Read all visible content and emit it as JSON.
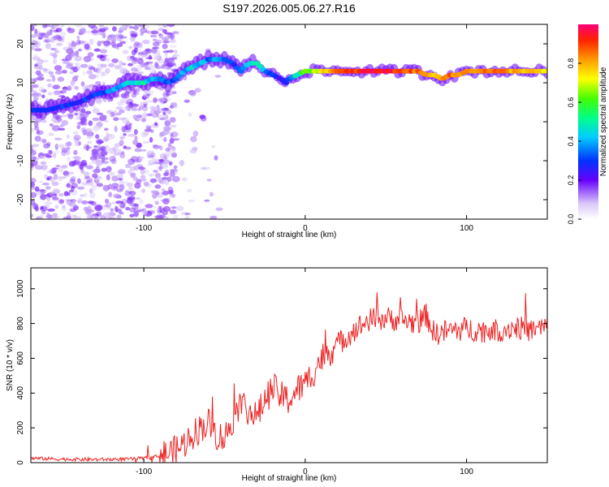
{
  "title": "S197.2026.005.06.27.R16",
  "chart_data": [
    {
      "type": "heatmap",
      "name": "spectrogram",
      "xlabel": "Height of straight line (km)",
      "ylabel": "Frequency (Hz)",
      "xlim": [
        -170,
        150
      ],
      "ylim": [
        -25,
        25
      ],
      "xticks": [
        -100,
        0,
        100
      ],
      "yticks": [
        -20,
        -10,
        0,
        10,
        20
      ],
      "ridge": {
        "x": [
          -170,
          -160,
          -150,
          -140,
          -130,
          -120,
          -110,
          -100,
          -95,
          -90,
          -85,
          -80,
          -75,
          -70,
          -65,
          -60,
          -55,
          -50,
          -45,
          -40,
          -35,
          -30,
          -25,
          -20,
          -15,
          -12,
          -10,
          -5,
          0,
          10,
          20,
          30,
          40,
          50,
          60,
          70,
          75,
          80,
          85,
          90,
          95,
          100,
          110,
          120,
          130,
          140,
          150
        ],
        "freq": [
          3,
          3,
          4,
          5,
          7,
          8,
          10,
          10,
          11,
          11,
          10,
          11,
          13,
          14,
          15,
          16,
          16,
          16,
          15,
          13,
          15,
          15,
          13,
          12,
          11,
          10,
          11,
          12,
          13,
          13,
          13,
          13,
          13,
          13,
          13,
          13,
          12,
          12,
          11,
          12,
          12,
          13,
          13,
          13,
          13,
          13,
          13
        ],
        "amp": [
          0.25,
          0.3,
          0.3,
          0.3,
          0.3,
          0.35,
          0.45,
          0.5,
          0.4,
          0.35,
          0.3,
          0.35,
          0.4,
          0.45,
          0.4,
          0.35,
          0.4,
          0.35,
          0.3,
          0.35,
          0.4,
          0.45,
          0.4,
          0.3,
          0.25,
          0.3,
          0.35,
          0.5,
          0.6,
          0.75,
          0.85,
          0.9,
          0.95,
          0.95,
          0.9,
          0.85,
          0.8,
          0.8,
          0.85,
          0.85,
          0.8,
          0.85,
          0.85,
          0.85,
          0.8,
          0.8,
          0.7
        ]
      },
      "colorbar": {
        "label": "Normalized spectral amplitude",
        "range": [
          0,
          1
        ],
        "ticks": [
          "0.0",
          "0.2",
          "0.4",
          "0.6",
          "0.8"
        ],
        "tick_values": [
          0.0,
          0.2,
          0.4,
          0.6,
          0.8
        ]
      }
    },
    {
      "type": "line",
      "name": "snr",
      "xlabel": "Height of straight line (km)",
      "ylabel": "SNR (10 * v/v)",
      "xlim": [
        -170,
        150
      ],
      "ylim": [
        0,
        1120
      ],
      "xticks": [
        -100,
        0,
        100
      ],
      "yticks": [
        0,
        200,
        400,
        600,
        800,
        1000
      ],
      "color": "#ee2222",
      "x": [
        -170,
        -150,
        -130,
        -110,
        -100,
        -90,
        -80,
        -75,
        -70,
        -65,
        -60,
        -55,
        -50,
        -45,
        -40,
        -35,
        -30,
        -25,
        -20,
        -15,
        -10,
        -5,
        0,
        5,
        10,
        20,
        30,
        40,
        50,
        60,
        70,
        75,
        80,
        90,
        100,
        110,
        120,
        130,
        140,
        150
      ],
      "y": [
        25,
        20,
        18,
        20,
        25,
        40,
        70,
        110,
        160,
        200,
        230,
        160,
        140,
        250,
        350,
        300,
        260,
        360,
        430,
        380,
        360,
        420,
        450,
        520,
        600,
        680,
        760,
        820,
        830,
        820,
        800,
        850,
        740,
        760,
        770,
        760,
        760,
        780,
        760,
        780
      ]
    }
  ]
}
